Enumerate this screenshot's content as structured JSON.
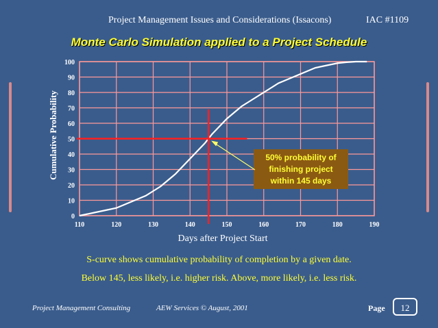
{
  "header": {
    "title": "Project Management Issues and Considerations (Issacons)",
    "doc_id": "IAC #1109"
  },
  "slide_title": "Monte Carlo Simulation applied to a Project Schedule",
  "chart_data": {
    "type": "line",
    "xlabel": "Days after Project Start",
    "ylabel": "Cumulative Probability",
    "xlim": [
      110,
      190
    ],
    "ylim": [
      0,
      100
    ],
    "x_ticks": [
      110,
      120,
      130,
      140,
      150,
      160,
      170,
      180,
      190
    ],
    "y_ticks": [
      0,
      10,
      20,
      30,
      40,
      50,
      60,
      70,
      80,
      90,
      100
    ],
    "grid": true,
    "series": [
      {
        "name": "",
        "x": [
          110,
          112,
          114,
          116,
          118,
          120,
          122,
          124,
          126,
          128,
          130,
          132,
          134,
          136,
          138,
          140,
          142,
          144,
          145,
          146,
          148,
          150,
          152,
          154,
          156,
          158,
          160,
          162,
          164,
          166,
          168,
          170,
          172,
          174,
          176,
          178,
          180,
          182,
          185,
          188
        ],
        "y": [
          0,
          1,
          2,
          3,
          4,
          5,
          7,
          9,
          11,
          13,
          16,
          19,
          23,
          27,
          32,
          37,
          42,
          47,
          50,
          53,
          58,
          63,
          67,
          71,
          74,
          77,
          80,
          83,
          86,
          88,
          90,
          92,
          94,
          96,
          97,
          98,
          99,
          99.5,
          100,
          100
        ]
      }
    ],
    "reference_lines": {
      "x": 145,
      "y": 50
    },
    "annotation": {
      "lines": [
        "50% probability of",
        "finishing project",
        "within 145 days"
      ],
      "x": 145,
      "y": 50
    },
    "colors": {
      "curve": "#ffffff",
      "grid": "#ff9999",
      "reference": "#ff2020",
      "annotation_bg": "#8b5a12",
      "annotation_text": "#ffff33",
      "arrow": "#ffff66"
    }
  },
  "captions": {
    "line1": "S-curve shows cumulative probability of completion by a given date.",
    "line2": "Below 145, less likely, i.e. higher risk.  Above, more likely, i.e. less risk."
  },
  "footer": {
    "org": "Project Management Consulting",
    "credit": "AEW  Services © August, 2001",
    "page_label": "Page",
    "page_number": "12"
  }
}
